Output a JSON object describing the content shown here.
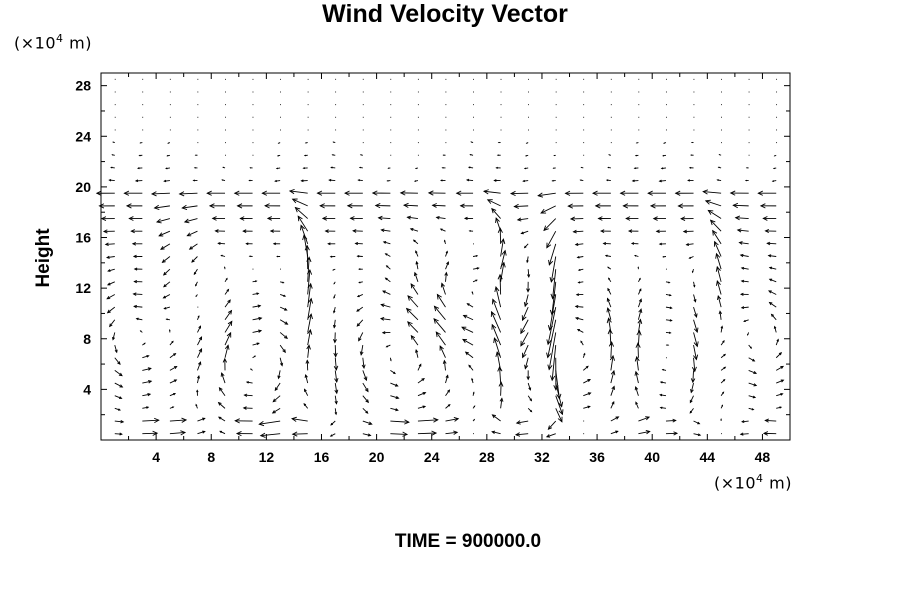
{
  "chart_data": {
    "type": "vector",
    "title": "Wind Velocity Vector",
    "ylabel": "Height",
    "xunit_prefix": "(×10",
    "xunit_exp": "4",
    "xunit_suffix": " m)",
    "yunit_prefix": "(×10",
    "yunit_exp": "4",
    "yunit_suffix": " m)",
    "annotation": "TIME = 900000.0",
    "xlim": [
      0,
      50
    ],
    "ylim": [
      0,
      29
    ],
    "x_ticks": [
      4,
      8,
      12,
      16,
      20,
      24,
      28,
      32,
      36,
      40,
      44,
      48
    ],
    "y_ticks": [
      4,
      8,
      12,
      16,
      20,
      24,
      28
    ],
    "grid": false,
    "colors": {
      "line": "#000000",
      "background": "#ffffff"
    }
  }
}
